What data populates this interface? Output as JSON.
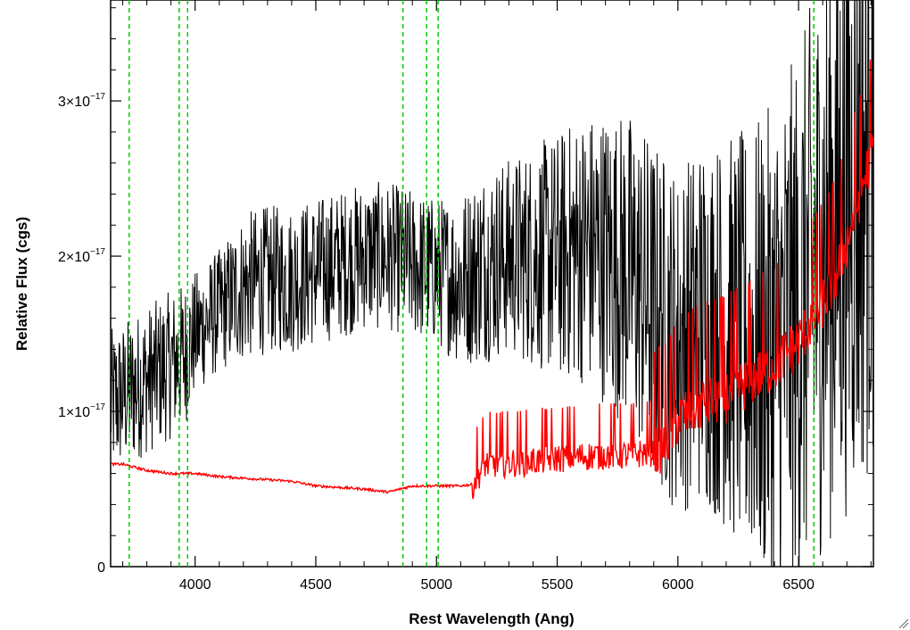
{
  "chart_data": {
    "type": "line",
    "title": "",
    "xlabel": "Rest Wavelength (Ang)",
    "ylabel": "Relative Flux (cgs)",
    "xlim": [
      3650,
      6810
    ],
    "ylim": [
      0,
      3.65e-17
    ],
    "x_ticks": [
      4000,
      4500,
      5000,
      5500,
      6000,
      6500
    ],
    "x_tick_labels": [
      "4000",
      "4500",
      "5000",
      "5500",
      "6000",
      "6500"
    ],
    "y_ticks": [
      {
        "value": 0,
        "mantissa": "0",
        "exponent": ""
      },
      {
        "value": 1e-17,
        "mantissa": "1×10",
        "exponent": "−17"
      },
      {
        "value": 2e-17,
        "mantissa": "2×10",
        "exponent": "−17"
      },
      {
        "value": 3e-17,
        "mantissa": "3×10",
        "exponent": "−17"
      }
    ],
    "grid": false,
    "series": [
      {
        "role": "observed-spectrum",
        "color": "#000000",
        "wavelength": [
          3650,
          3700,
          3750,
          3800,
          3850,
          3900,
          3950,
          4000,
          4100,
          4200,
          4300,
          4400,
          4500,
          4600,
          4700,
          4800,
          4900,
          5000,
          5100,
          5200,
          5300,
          5400,
          5500,
          5600,
          5700,
          5800,
          5900,
          6000,
          6100,
          6200,
          6300,
          6400,
          6500,
          6600,
          6700,
          6810
        ],
        "flux": [
          1.05e-17,
          1.1e-17,
          1.15e-17,
          1.2e-17,
          1.25e-17,
          1.3e-17,
          1.35e-17,
          1.5e-17,
          1.65e-17,
          1.8e-17,
          1.85e-17,
          1.85e-17,
          1.9e-17,
          1.95e-17,
          2e-17,
          2e-17,
          1.95e-17,
          1.9e-17,
          1.85e-17,
          1.95e-17,
          2e-17,
          2e-17,
          2e-17,
          2.05e-17,
          2e-17,
          1.9e-17,
          1.65e-17,
          1.45e-17,
          1.6e-17,
          1.5e-17,
          1.4e-17,
          1.4e-17,
          1.6e-17,
          2e-17,
          2.4e-17,
          2.7e-17
        ],
        "noise": [
          3e-18,
          3e-18,
          3e-18,
          3e-18,
          3e-18,
          3e-18,
          3e-18,
          2.5e-18,
          2.5e-18,
          3e-18,
          3e-18,
          3e-18,
          3e-18,
          3e-18,
          3e-18,
          3e-18,
          3e-18,
          3e-18,
          3.5e-18,
          4e-18,
          4e-18,
          4.5e-18,
          5e-18,
          5.5e-18,
          6e-18,
          6.5e-18,
          7e-18,
          7e-18,
          7.5e-18,
          8e-18,
          9e-18,
          1e-17,
          1.1e-17,
          1.2e-17,
          1.3e-17,
          1.3e-17
        ]
      },
      {
        "role": "error-spectrum",
        "color": "#ff0000",
        "wavelength": [
          3650,
          3700,
          3750,
          3800,
          3900,
          4000,
          4100,
          4200,
          4300,
          4400,
          4500,
          4600,
          4700,
          4800,
          4900,
          5000,
          5100,
          5150,
          5200,
          5300,
          5400,
          5500,
          5600,
          5700,
          5800,
          5900,
          5950,
          6000,
          6100,
          6200,
          6300,
          6400,
          6500,
          6600,
          6650,
          6700,
          6810
        ],
        "flux": [
          6.6e-18,
          6.6e-18,
          6.4e-18,
          6.2e-18,
          6e-18,
          6e-18,
          5.8e-18,
          5.7e-18,
          5.6e-18,
          5.5e-18,
          5.2e-18,
          5.1e-18,
          5e-18,
          4.8e-18,
          5.2e-18,
          5.2e-18,
          5.2e-18,
          5.3e-18,
          6.6e-18,
          6.7e-18,
          6.8e-18,
          7e-18,
          7.1e-18,
          7.2e-18,
          7.2e-18,
          7.4e-18,
          8e-18,
          9.5e-18,
          1.05e-17,
          1.1e-17,
          1.2e-17,
          1.3e-17,
          1.45e-17,
          1.7e-17,
          1.85e-17,
          2.1e-17,
          2.7e-17
        ],
        "noise_start_wavelength": 5150,
        "noise": 8e-19
      }
    ],
    "vertical_lines": {
      "color": "#00cc00",
      "style": "dashed",
      "x": [
        3727,
        3934,
        3969,
        4861,
        4959,
        5007,
        6563
      ]
    }
  }
}
